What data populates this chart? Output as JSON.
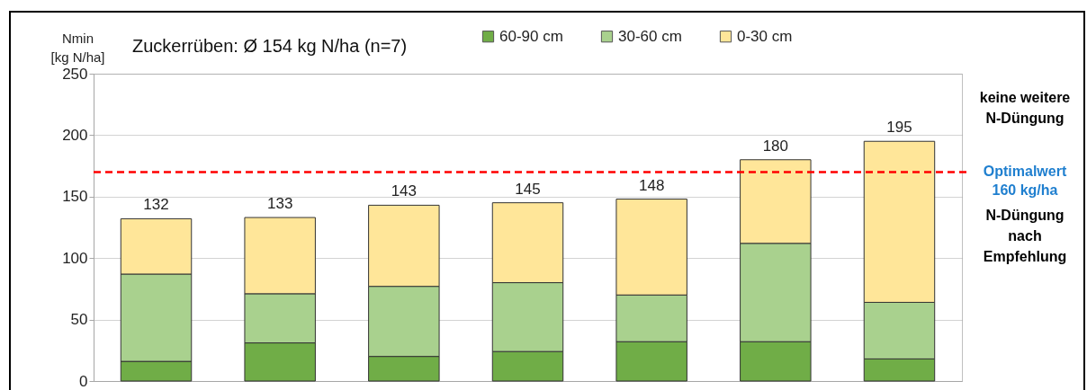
{
  "chart_data": {
    "type": "bar",
    "title": "Zuckerrüben: Ø 154 kg N/ha (n=7)",
    "ylabel": "Nmin\n[kg N/ha]",
    "categories": [
      null,
      null,
      null,
      null,
      null,
      null,
      null
    ],
    "stacked": true,
    "series": [
      {
        "name": "60-90 cm",
        "color": "#70ad47",
        "values": [
          16,
          31,
          20,
          24,
          32,
          32,
          18
        ]
      },
      {
        "name": "30-60 cm",
        "color": "#a9d18e",
        "values": [
          71,
          40,
          57,
          56,
          38,
          80,
          46
        ]
      },
      {
        "name": "0-30 cm",
        "color": "#ffe699",
        "values": [
          45,
          62,
          66,
          65,
          78,
          68,
          131
        ]
      }
    ],
    "totals": [
      "132",
      "133",
      "143",
      "145",
      "148",
      "180",
      "195"
    ],
    "ylim": [
      0,
      250
    ],
    "yticks": [
      0,
      50,
      100,
      150,
      200,
      250
    ],
    "grid": "y",
    "legend": "top",
    "tick_labels": "y",
    "ref_lines": [
      {
        "axis": "y",
        "value": 170,
        "label": "Optimalwert\n160 kg/ha",
        "color": "#ff0000",
        "line_style": "dashed"
      }
    ],
    "annotations": [
      "keine weitere\nN-Düngung",
      "N-Düngung\nnach\nEmpfehlung"
    ]
  }
}
